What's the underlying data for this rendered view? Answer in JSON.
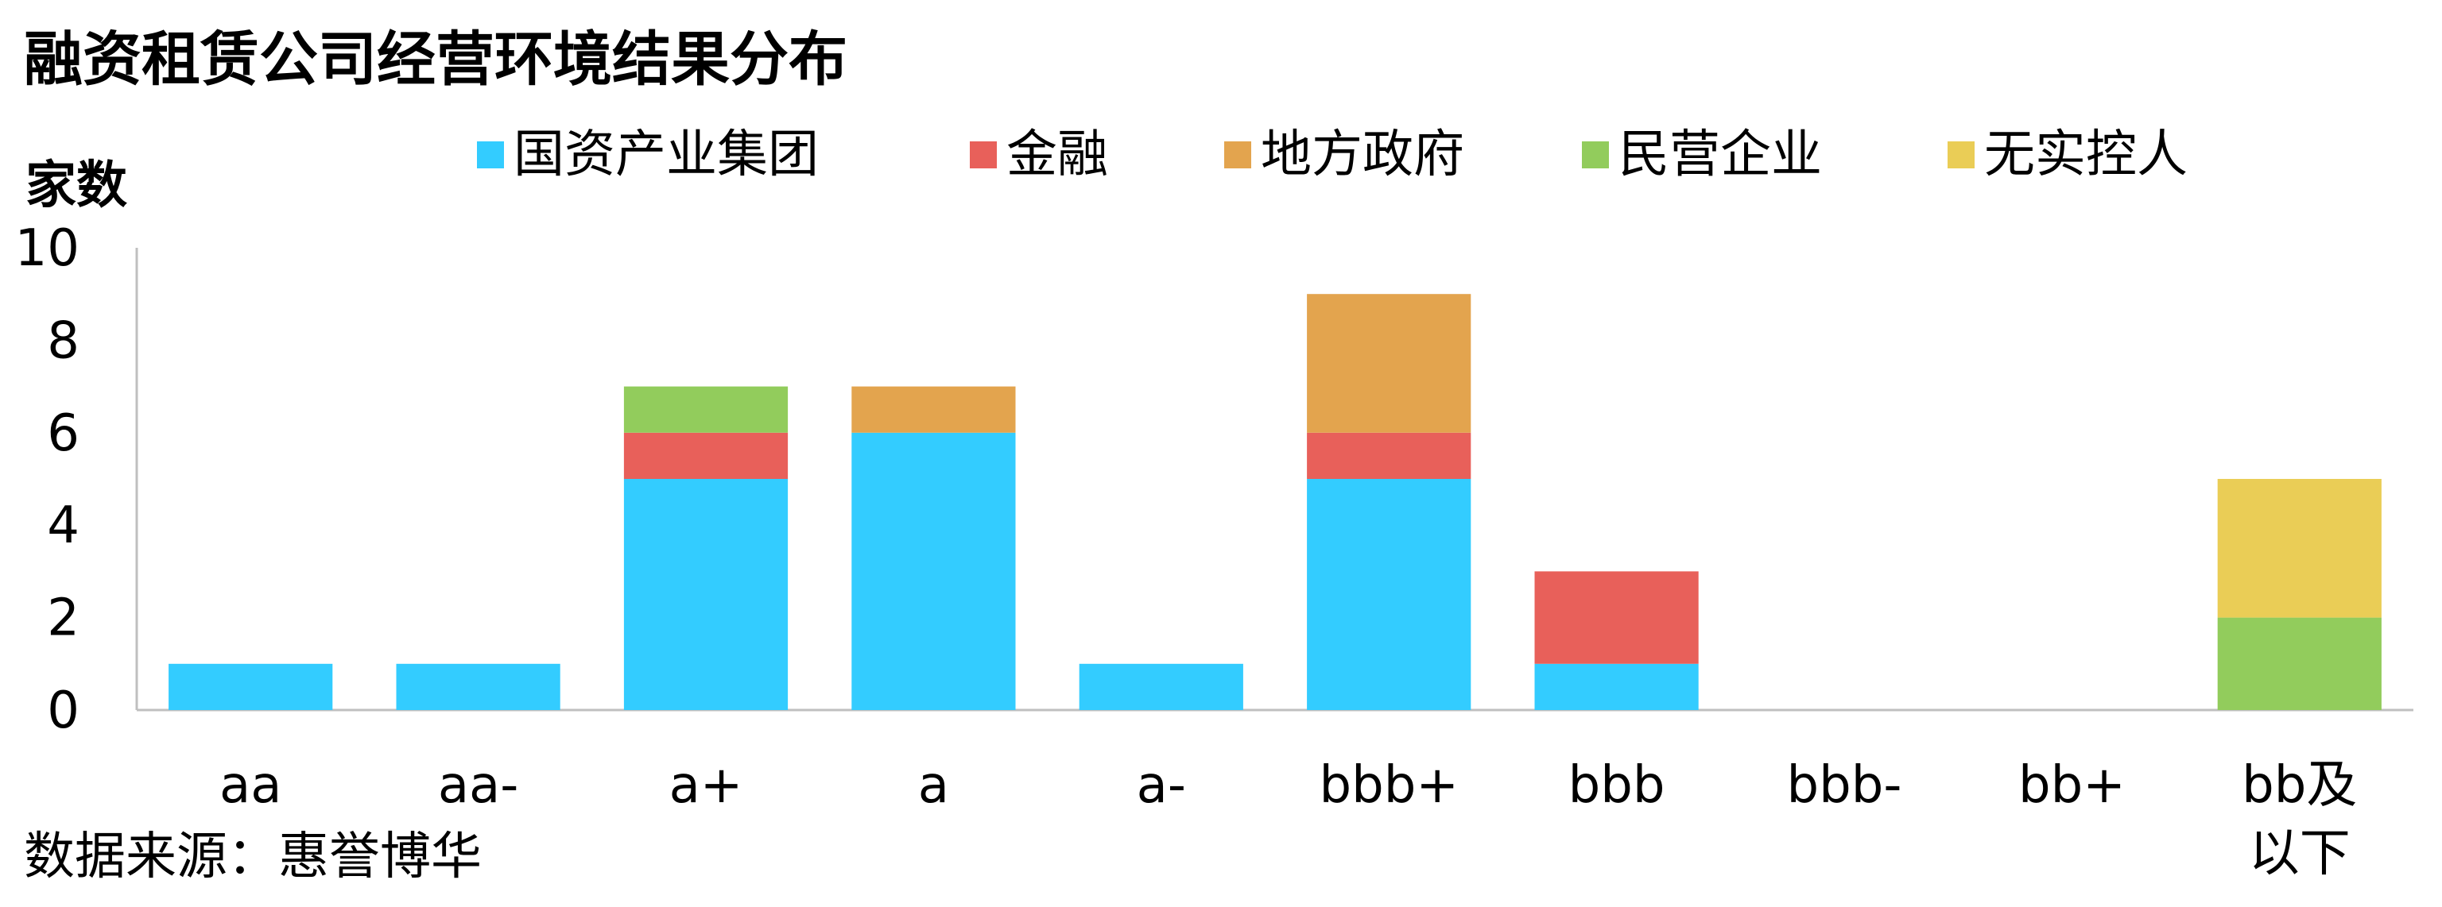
{
  "chart_data": {
    "type": "bar",
    "stacked": true,
    "title": "融资租赁公司经营环境结果分布",
    "ylabel": "家数",
    "xlabel": "",
    "ylim": [
      0,
      10
    ],
    "yticks": [
      0,
      2,
      4,
      6,
      8,
      10
    ],
    "grid": false,
    "legend_position": "top",
    "categories": [
      "aa",
      "aa-",
      "a+",
      "a",
      "a-",
      "bbb+",
      "bbb",
      "bbb-",
      "bb+",
      "bb及以下"
    ],
    "series": [
      {
        "name": "国资产业集团",
        "color": "#33CCFF",
        "values": [
          1,
          1,
          5,
          6,
          1,
          5,
          1,
          0,
          0,
          0
        ]
      },
      {
        "name": "金融",
        "color": "#E8605A",
        "values": [
          0,
          0,
          1,
          0,
          0,
          1,
          2,
          0,
          0,
          0
        ]
      },
      {
        "name": "地方政府",
        "color": "#E3A44E",
        "values": [
          0,
          0,
          0,
          1,
          0,
          3,
          0,
          0,
          0,
          0
        ]
      },
      {
        "name": "民营企业",
        "color": "#92CC5C",
        "values": [
          0,
          0,
          1,
          0,
          0,
          0,
          0,
          0,
          0,
          2
        ]
      },
      {
        "name": "无实控人",
        "color": "#EACD56",
        "values": [
          0,
          0,
          0,
          0,
          0,
          0,
          0,
          0,
          0,
          3
        ]
      }
    ],
    "source": "数据来源：惠誉博华"
  }
}
